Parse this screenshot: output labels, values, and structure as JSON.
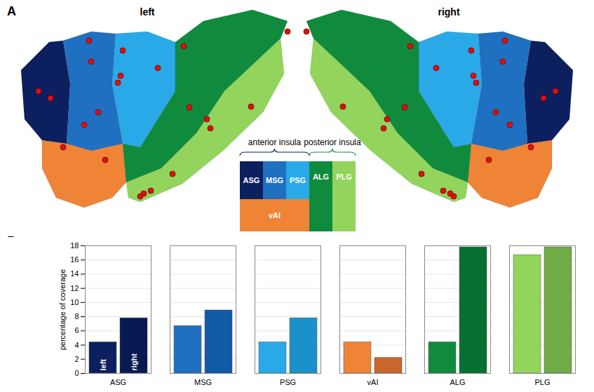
{
  "chart_data": {
    "type": "bar",
    "panel": "B",
    "categories": [
      "ASG",
      "MSG",
      "PSG",
      "vAI",
      "ALG",
      "PLG"
    ],
    "series": [
      {
        "name": "left",
        "colors": [
          "#0c1f5e",
          "#1f70c1",
          "#2aa9e8",
          "#ef8436",
          "#108b3d",
          "#92d45c"
        ],
        "values": [
          4.4,
          6.7,
          4.4,
          4.4,
          4.4,
          16.7
        ]
      },
      {
        "name": "right",
        "colors": [
          "#081a52",
          "#115aa6",
          "#1b91c9",
          "#c8662b",
          "#077031",
          "#70ac46"
        ],
        "values": [
          7.8,
          8.9,
          7.8,
          2.2,
          17.8,
          17.8
        ]
      }
    ],
    "ylabel": "percentage of coverage",
    "ylim": [
      0,
      18
    ],
    "yticks": [
      0,
      2,
      4,
      6,
      8,
      10,
      12,
      14,
      16,
      18
    ],
    "grid": true
  },
  "diagram": {
    "panel": "A",
    "hemispheres": [
      "left",
      "right"
    ],
    "groups": [
      {
        "label": "anterior insula",
        "regions": [
          "ASG",
          "MSG",
          "PSG",
          "vAI"
        ]
      },
      {
        "label": "posterior insula",
        "regions": [
          "ALG",
          "PLG"
        ]
      }
    ],
    "regions": [
      {
        "name": "ASG",
        "color": "#0c1f5e"
      },
      {
        "name": "MSG",
        "color": "#1f70c1"
      },
      {
        "name": "PSG",
        "color": "#2aa9e8"
      },
      {
        "name": "vAI",
        "color": "#ef8436"
      },
      {
        "name": "ALG",
        "color": "#108b3d"
      },
      {
        "name": "PLG",
        "color": "#92d45c"
      }
    ]
  }
}
